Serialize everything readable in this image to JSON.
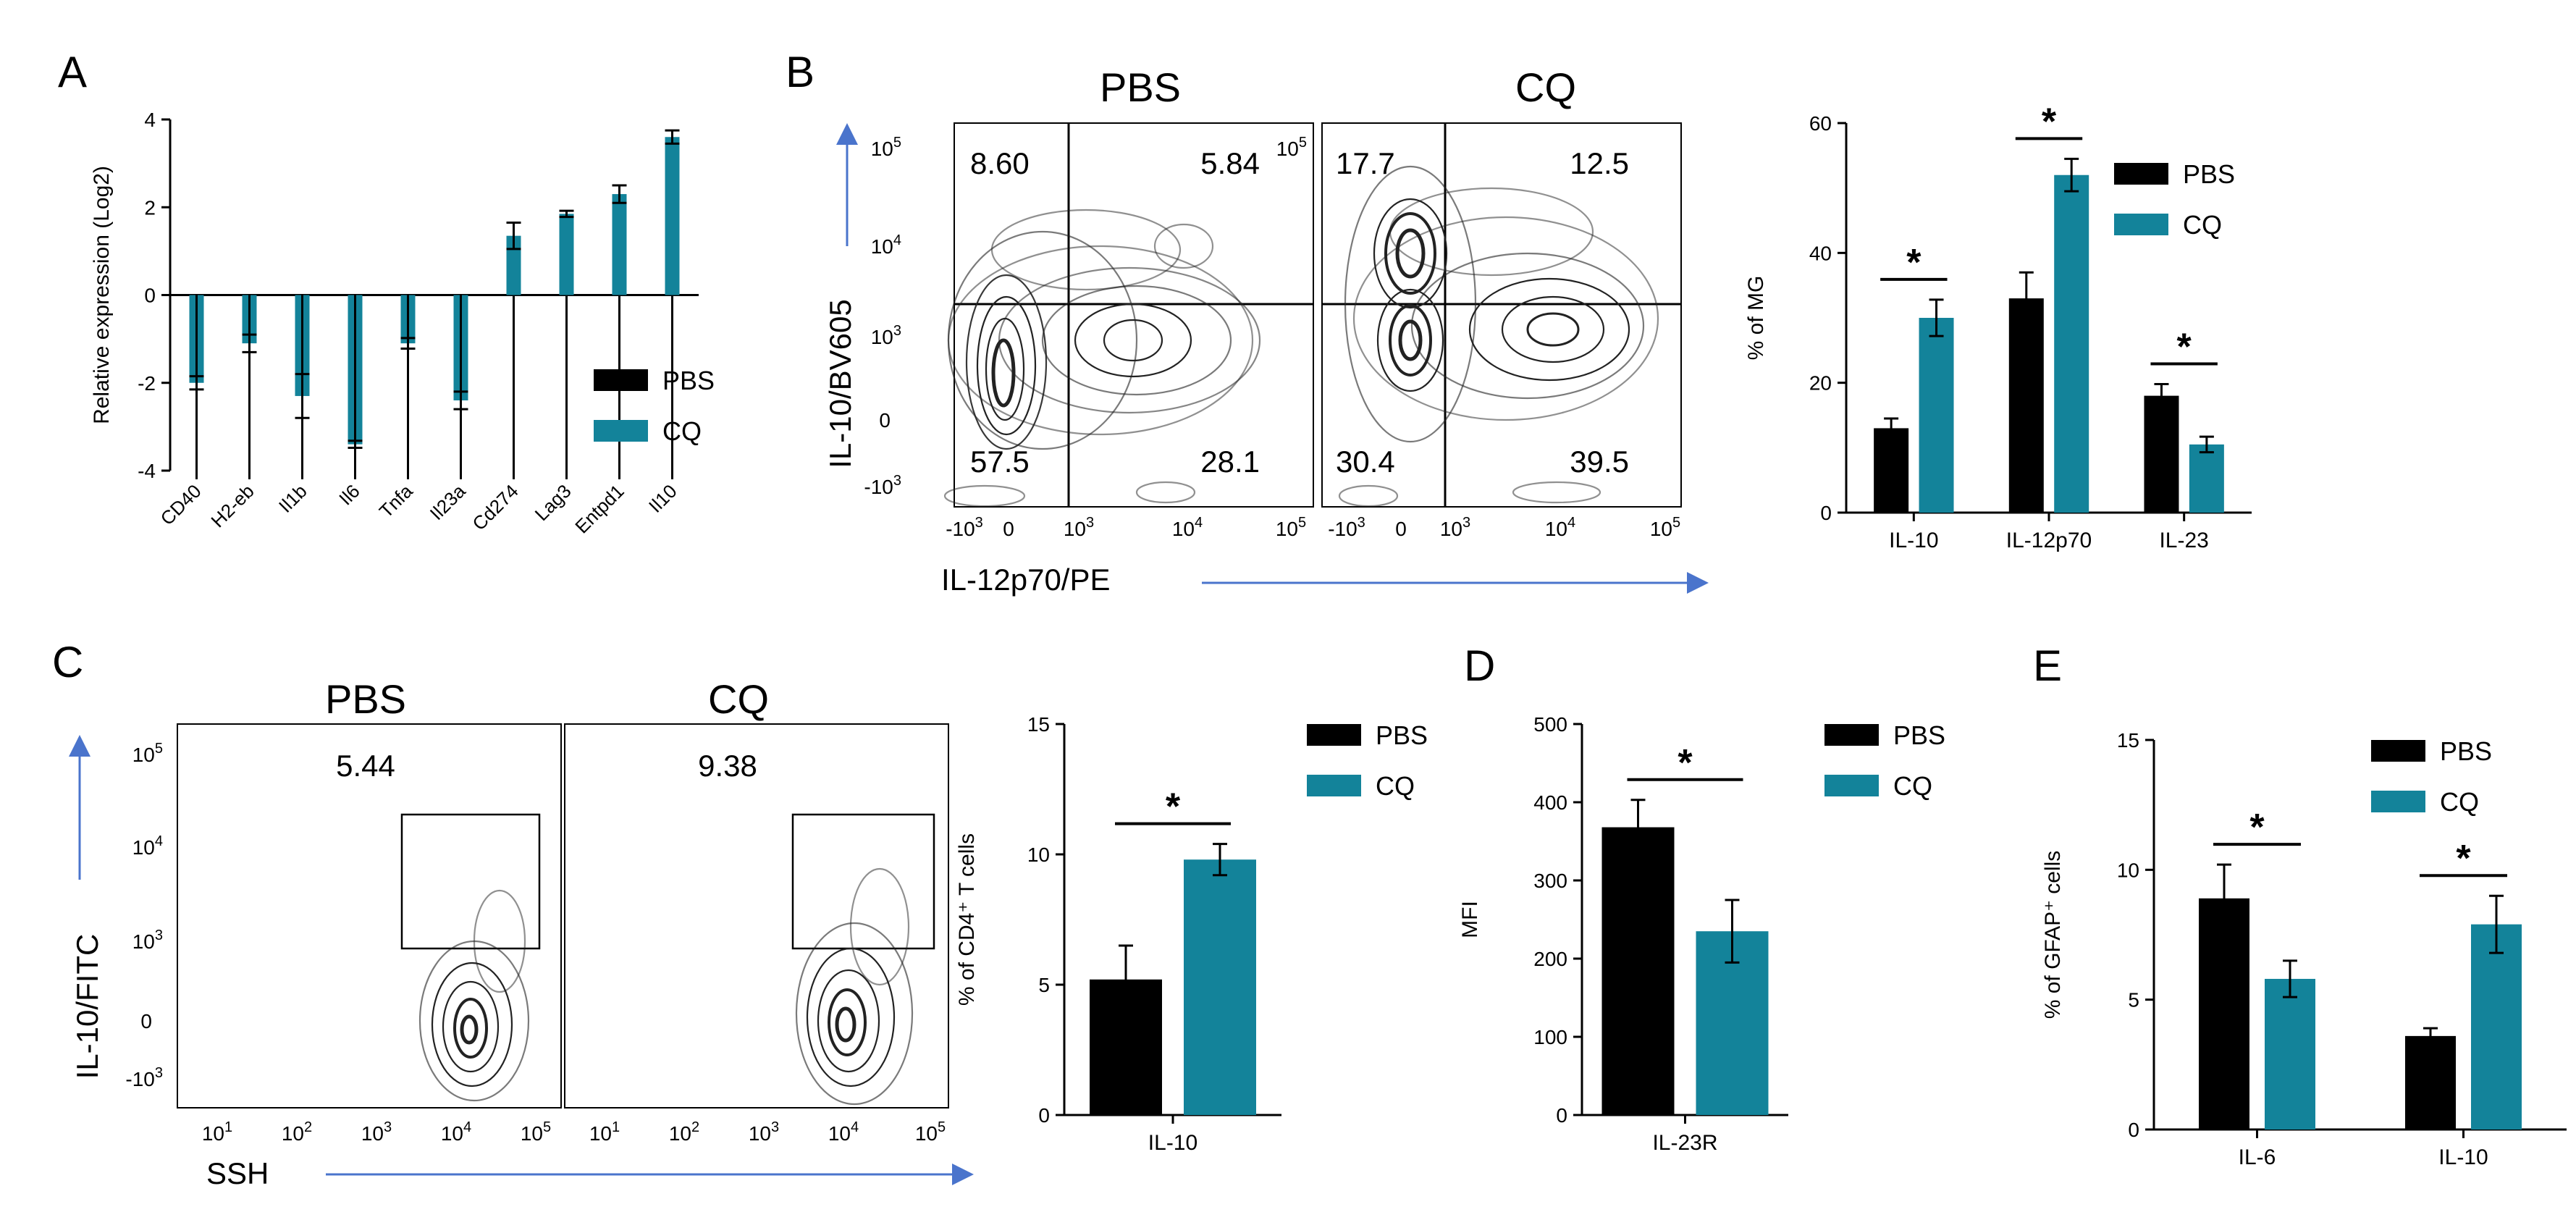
{
  "colors": {
    "pbs": "#000000",
    "cq": "#13839a",
    "arrow": "#4a74cc"
  },
  "legend": {
    "pbs": "PBS",
    "cq": "CQ"
  },
  "panels": {
    "A": {
      "letter": "A"
    },
    "B": {
      "letter": "B",
      "left_title": "PBS",
      "right_title": "CQ",
      "x_label": "IL-12p70/PE",
      "y_label": "IL-10/BV605",
      "pbs_quadrants": [
        "8.60",
        "5.84",
        "57.5",
        "28.1"
      ],
      "cq_quadrants": [
        "17.7",
        "12.5",
        "30.4",
        "39.5"
      ]
    },
    "C": {
      "letter": "C",
      "left_title": "PBS",
      "right_title": "CQ",
      "x_label": "SSH",
      "y_label": "IL-10/FITC",
      "pbs_gate": "5.44",
      "cq_gate": "9.38"
    },
    "D": {
      "letter": "D"
    },
    "E": {
      "letter": "E"
    }
  },
  "flow_ticks": {
    "y_B": [
      "10",
      "10",
      "10",
      "0",
      "-10"
    ],
    "y_B_exp": [
      "5",
      "4",
      "3",
      "",
      "3"
    ],
    "x_B": [
      "-10",
      "0",
      "10",
      "10",
      "10"
    ],
    "x_B_exp": [
      "3",
      "",
      "3",
      "4",
      "5"
    ],
    "y_C": [
      "10",
      "10",
      "10",
      "0",
      "-10"
    ],
    "y_C_exp": [
      "5",
      "4",
      "3",
      "",
      "3"
    ],
    "x_C": [
      "10",
      "10",
      "10",
      "10",
      "10"
    ],
    "x_C_exp": [
      "1",
      "2",
      "3",
      "4",
      "5"
    ]
  },
  "chart_data": [
    {
      "id": "A",
      "type": "bar",
      "title": "",
      "ylabel": "Relative expression (Log2)",
      "xlabel": "",
      "ylim": [
        -4,
        4
      ],
      "yticks": [
        4,
        2,
        0,
        -2,
        -4
      ],
      "categories": [
        "CD40",
        "H2-eb",
        "Il1b",
        "Il6",
        "Tnfa",
        "Il23a",
        "Cd274",
        "Lag3",
        "Entpd1",
        "Il10"
      ],
      "series": [
        {
          "name": "CQ",
          "values": [
            -2.0,
            -1.1,
            -2.3,
            -3.4,
            -1.1,
            -2.4,
            1.35,
            1.85,
            2.3,
            3.6
          ],
          "errors": [
            0.15,
            0.2,
            0.5,
            0.08,
            0.12,
            0.2,
            0.3,
            0.07,
            0.2,
            0.15
          ]
        }
      ],
      "legend_entries": [
        "PBS",
        "CQ"
      ]
    },
    {
      "id": "B",
      "type": "bar",
      "ylabel": "% of MG",
      "ylim": [
        0,
        60
      ],
      "yticks": [
        60,
        40,
        20,
        0
      ],
      "categories": [
        "IL-10",
        "IL-12p70",
        "IL-23"
      ],
      "series": [
        {
          "name": "PBS",
          "values": [
            13,
            33,
            18
          ],
          "errors": [
            1.5,
            4,
            1.8
          ]
        },
        {
          "name": "CQ",
          "values": [
            30,
            52,
            10.5
          ],
          "errors": [
            2.8,
            2.5,
            1.2
          ]
        }
      ],
      "significance": [
        "*",
        "*",
        "*"
      ]
    },
    {
      "id": "C",
      "type": "bar",
      "ylabel": "% of CD4⁺ T cells",
      "ylim": [
        0,
        15
      ],
      "yticks": [
        15,
        10,
        5,
        0
      ],
      "categories": [
        "IL-10"
      ],
      "series": [
        {
          "name": "PBS",
          "values": [
            5.2
          ],
          "errors": [
            1.3
          ]
        },
        {
          "name": "CQ",
          "values": [
            9.8
          ],
          "errors": [
            0.6
          ]
        }
      ],
      "significance": [
        "*"
      ]
    },
    {
      "id": "D",
      "type": "bar",
      "ylabel": "MFI",
      "ylim": [
        0,
        500
      ],
      "yticks": [
        500,
        400,
        300,
        200,
        100,
        0
      ],
      "categories": [
        "IL-23R"
      ],
      "series": [
        {
          "name": "PBS",
          "values": [
            368
          ],
          "errors": [
            35
          ]
        },
        {
          "name": "CQ",
          "values": [
            235
          ],
          "errors": [
            40
          ]
        }
      ],
      "significance": [
        "*"
      ]
    },
    {
      "id": "E",
      "type": "bar",
      "ylabel": "% of GFAP⁺ cells",
      "ylim": [
        0,
        15
      ],
      "yticks": [
        15,
        10,
        5,
        0
      ],
      "categories": [
        "IL-6",
        "IL-10"
      ],
      "series": [
        {
          "name": "PBS",
          "values": [
            8.9,
            3.6
          ],
          "errors": [
            1.3,
            0.3
          ]
        },
        {
          "name": "CQ",
          "values": [
            5.8,
            7.9
          ],
          "errors": [
            0.7,
            1.1
          ]
        }
      ],
      "significance": [
        "*",
        "*"
      ]
    }
  ]
}
